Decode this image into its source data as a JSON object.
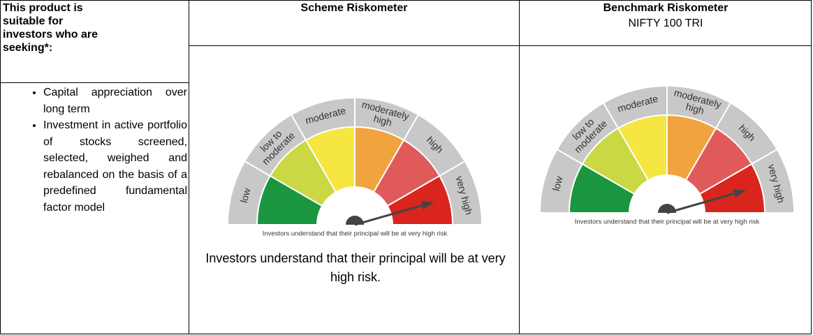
{
  "header": {
    "suitability": "This product is suitable for investors who are seeking*:",
    "scheme": "Scheme Riskometer",
    "benchmark": "Benchmark Riskometer",
    "benchmark_index": "NIFTY 100 TRI"
  },
  "suitability_points": [
    "Capital appreciation over long term",
    "Investment in active portfolio of stocks screened, selected, weighed and rebalanced on the basis of a predefined fundamental factor model"
  ],
  "riskometer_levels": [
    [
      "low"
    ],
    [
      "low to",
      "moderate"
    ],
    [
      "moderate"
    ],
    [
      "moderately",
      "high"
    ],
    [
      "high"
    ],
    [
      "very high"
    ]
  ],
  "scheme": {
    "caption": "Investors understand that their principal will be at very high risk",
    "statement": "Investors understand that their principal will be at very high risk."
  },
  "benchmark": {
    "caption": "Investors understand that their principal will be at very high risk"
  }
}
